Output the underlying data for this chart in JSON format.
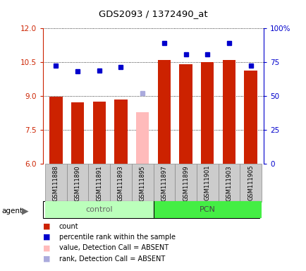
{
  "title": "GDS2093 / 1372490_at",
  "samples": [
    "GSM111888",
    "GSM111890",
    "GSM111891",
    "GSM111893",
    "GSM111895",
    "GSM111897",
    "GSM111899",
    "GSM111901",
    "GSM111903",
    "GSM111905"
  ],
  "bar_values": [
    8.97,
    8.72,
    8.75,
    8.85,
    8.3,
    10.6,
    10.43,
    10.52,
    10.6,
    10.15
  ],
  "bar_colors": [
    "#cc2200",
    "#cc2200",
    "#cc2200",
    "#cc2200",
    "#ffbbbb",
    "#cc2200",
    "#cc2200",
    "#cc2200",
    "#cc2200",
    "#cc2200"
  ],
  "dot_values": [
    10.35,
    10.1,
    10.15,
    10.3,
    9.15,
    11.35,
    10.85,
    10.85,
    11.35,
    10.35
  ],
  "dot_colors": [
    "#0000cc",
    "#0000cc",
    "#0000cc",
    "#0000cc",
    "#aaaadd",
    "#0000cc",
    "#0000cc",
    "#0000cc",
    "#0000cc",
    "#0000cc"
  ],
  "ylim_left": [
    6,
    12
  ],
  "ylim_right": [
    0,
    100
  ],
  "yticks_left": [
    6,
    7.5,
    9,
    10.5,
    12
  ],
  "yticks_right": [
    0,
    25,
    50,
    75,
    100
  ],
  "ytick_labels_right": [
    "0",
    "25",
    "50",
    "75",
    "100%"
  ],
  "bar_bottom": 6,
  "legend_items": [
    {
      "label": "count",
      "color": "#cc2200"
    },
    {
      "label": "percentile rank within the sample",
      "color": "#0000cc"
    },
    {
      "label": "value, Detection Call = ABSENT",
      "color": "#ffbbbb"
    },
    {
      "label": "rank, Detection Call = ABSENT",
      "color": "#aaaadd"
    }
  ]
}
